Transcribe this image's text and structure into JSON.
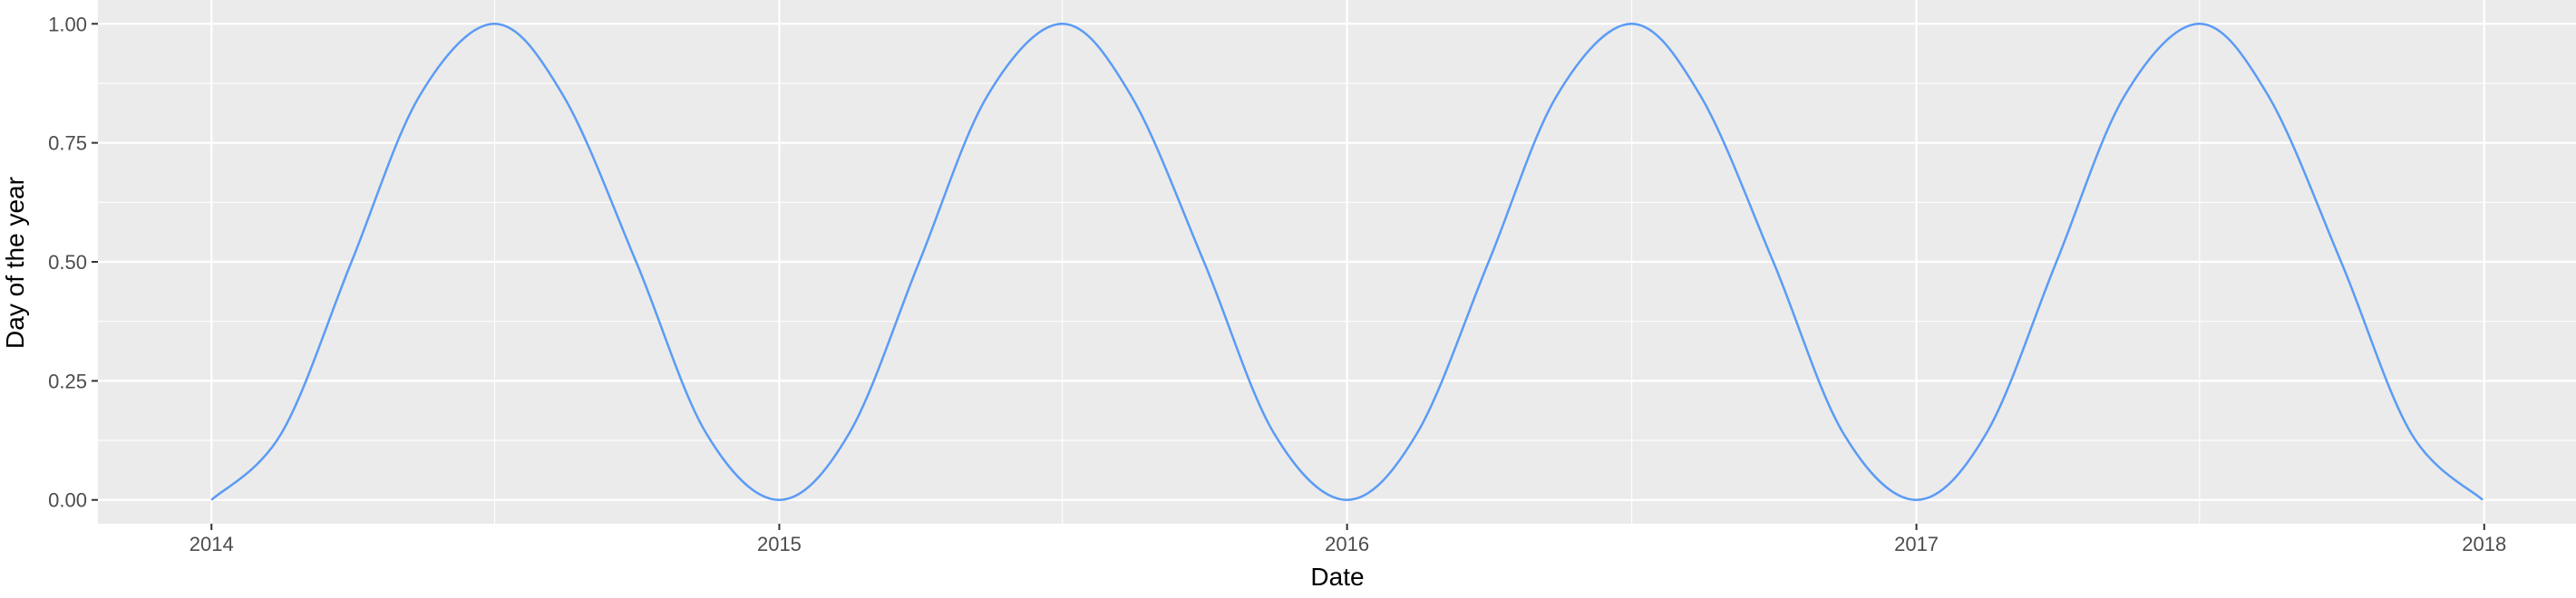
{
  "chart_data": {
    "type": "line",
    "title": "",
    "xlabel": "Date",
    "ylabel": "Day of the year",
    "x_ticks": [
      "2014",
      "2015",
      "2016",
      "2017",
      "2018"
    ],
    "x_range": [
      "2013-10-20",
      "2018-03-01"
    ],
    "y_ticks": [
      "0.00",
      "0.25",
      "0.50",
      "0.75",
      "1.00"
    ],
    "ylim": [
      -0.05,
      1.05
    ],
    "grid": true,
    "legend": "none",
    "series": [
      {
        "color": "#5b9bf5",
        "x": [
          "2014-01-01",
          "2014-02-15",
          "2014-04-01",
          "2014-05-15",
          "2014-07-02",
          "2014-08-15",
          "2014-10-01",
          "2014-11-15",
          "2015-01-01",
          "2015-02-15",
          "2015-04-01",
          "2015-05-15",
          "2015-07-02",
          "2015-08-15",
          "2015-10-01",
          "2015-11-15",
          "2016-01-01",
          "2016-02-15",
          "2016-04-01",
          "2016-05-15",
          "2016-07-02",
          "2016-08-15",
          "2016-10-01",
          "2016-11-15",
          "2017-01-01",
          "2017-02-15",
          "2017-04-01",
          "2017-05-15",
          "2017-07-02",
          "2017-08-15",
          "2017-10-01",
          "2017-11-15",
          "2017-12-31"
        ],
        "y": [
          0.0,
          0.14,
          0.5,
          0.85,
          1.0,
          0.85,
          0.5,
          0.14,
          0.0,
          0.14,
          0.5,
          0.85,
          1.0,
          0.85,
          0.5,
          0.14,
          0.0,
          0.14,
          0.5,
          0.85,
          1.0,
          0.85,
          0.5,
          0.14,
          0.0,
          0.14,
          0.5,
          0.85,
          1.0,
          0.85,
          0.5,
          0.14,
          0.0
        ]
      }
    ]
  },
  "colors": {
    "panel_background": "#ebebeb",
    "grid_major": "#ffffff",
    "line": "#5b9bf5"
  }
}
